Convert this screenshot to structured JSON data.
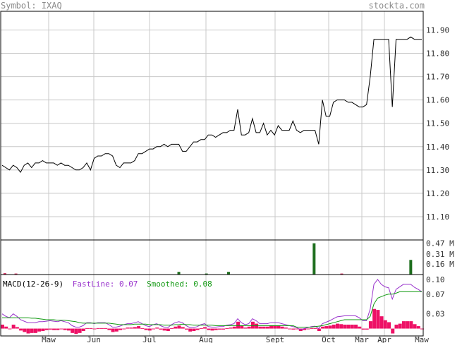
{
  "header": {
    "symbol_label": "Symbol: IXAQ",
    "site": "stockta.com"
  },
  "colors": {
    "price": "#000000",
    "grid": "#c8c8c8",
    "vol_green": "#1e6e1e",
    "vol_red": "#cc2255",
    "fast": "#9933cc",
    "smoothed": "#119911",
    "hist": "#ee1166",
    "axis_text": "#333333"
  },
  "chart_data": [
    {
      "type": "line",
      "panel": "price",
      "ylim": [
        11.0,
        11.98
      ],
      "y_ticks": [
        "11.90",
        "11.80",
        "11.70",
        "11.60",
        "11.50",
        "11.40",
        "11.30",
        "11.20",
        "11.10"
      ],
      "x_ticks": [
        "Maw",
        "Jun",
        "Jul",
        "Aug",
        "Sept",
        "Oct",
        "Mar",
        "Apr",
        "Maw"
      ],
      "grid": true,
      "series": [
        {
          "values": [
            11.32,
            11.31,
            11.3,
            11.32,
            11.31,
            11.29,
            11.32,
            11.33,
            11.31,
            11.33,
            11.33,
            11.34,
            11.33,
            11.33,
            11.33,
            11.32,
            11.33,
            11.32,
            11.32,
            11.31,
            11.3,
            11.3,
            11.31,
            11.33,
            11.3,
            11.35,
            11.36,
            11.36,
            11.37,
            11.37,
            11.36,
            11.32,
            11.31,
            11.33,
            11.33,
            11.33,
            11.34,
            11.37,
            11.37,
            11.38,
            11.39,
            11.39,
            11.4,
            11.4,
            11.41,
            11.4,
            11.41,
            11.41,
            11.41,
            11.38,
            11.38,
            11.4,
            11.42,
            11.42,
            11.43,
            11.43,
            11.45,
            11.45,
            11.44,
            11.45,
            11.46,
            11.46,
            11.47,
            11.47,
            11.56,
            11.45,
            11.45,
            11.46,
            11.52,
            11.46,
            11.46,
            11.5,
            11.45,
            11.47,
            11.45,
            11.49,
            11.47,
            11.47,
            11.47,
            11.51,
            11.47,
            11.46,
            11.47,
            11.47,
            11.47,
            11.47,
            11.41,
            11.6,
            11.53,
            11.53,
            11.59,
            11.6,
            11.6,
            11.6,
            11.59,
            11.59,
            11.58,
            11.57,
            11.57,
            11.58,
            11.7,
            11.86,
            11.86,
            11.86,
            11.86,
            11.86,
            11.57,
            11.86,
            11.86,
            11.86,
            11.86,
            11.87,
            11.86,
            11.86,
            11.86
          ]
        }
      ]
    },
    {
      "type": "bar",
      "panel": "volume",
      "y_ticks": [
        "0.47 M",
        "0.31 M",
        "0.16 M"
      ],
      "ylim": [
        0,
        0.52
      ],
      "bars": [
        {
          "i": 1,
          "v": 0.02,
          "c": "red"
        },
        {
          "i": 5,
          "v": 0.015,
          "c": "red"
        },
        {
          "i": 64,
          "v": 0.04,
          "c": "green"
        },
        {
          "i": 74,
          "v": 0.015,
          "c": "green"
        },
        {
          "i": 82,
          "v": 0.04,
          "c": "green"
        },
        {
          "i": 113,
          "v": 0.47,
          "c": "green"
        },
        {
          "i": 123,
          "v": 0.015,
          "c": "red"
        },
        {
          "i": 148,
          "v": 0.22,
          "c": "green"
        }
      ]
    },
    {
      "type": "line",
      "panel": "macd",
      "legend": {
        "title": "MACD(12-26-9)",
        "fast_label": "FastLine: 0.07",
        "smoothed_label": "Smoothed: 0.08"
      },
      "y_ticks": [
        "0.10",
        "0.07",
        "0.03"
      ],
      "ylim": [
        -0.015,
        0.11
      ],
      "series": [
        {
          "name": "FastLine",
          "values": [
            0.03,
            0.025,
            0.022,
            0.03,
            0.025,
            0.018,
            0.015,
            0.012,
            0.012,
            0.012,
            0.014,
            0.014,
            0.015,
            0.016,
            0.015,
            0.014,
            0.016,
            0.014,
            0.012,
            0.006,
            0.003,
            0.003,
            0.006,
            0.012,
            0.012,
            0.01,
            0.012,
            0.012,
            0.012,
            0.008,
            0.003,
            0.003,
            0.005,
            0.008,
            0.01,
            0.01,
            0.012,
            0.014,
            0.01,
            0.006,
            0.004,
            0.008,
            0.01,
            0.006,
            0.003,
            0.002,
            0.008,
            0.012,
            0.014,
            0.012,
            0.006,
            0.002,
            0.002,
            0.004,
            0.008,
            0.01,
            0.004,
            0.003,
            0.003,
            0.004,
            0.004,
            0.007,
            0.008,
            0.01,
            0.02,
            0.012,
            0.008,
            0.01,
            0.02,
            0.016,
            0.01,
            0.01,
            0.01,
            0.012,
            0.012,
            0.012,
            0.01,
            0.008,
            0.006,
            0.004,
            0.002,
            -0.002,
            0.0,
            0.002,
            0.004,
            0.005,
            0.0,
            0.01,
            0.013,
            0.016,
            0.02,
            0.024,
            0.025,
            0.026,
            0.026,
            0.026,
            0.026,
            0.022,
            0.016,
            0.016,
            0.04,
            0.09,
            0.1,
            0.09,
            0.085,
            0.083,
            0.06,
            0.08,
            0.085,
            0.09,
            0.09,
            0.09,
            0.084,
            0.08,
            0.075
          ]
        },
        {
          "name": "Smoothed",
          "values": [
            0.022,
            0.022,
            0.022,
            0.022,
            0.022,
            0.022,
            0.022,
            0.022,
            0.021,
            0.021,
            0.02,
            0.019,
            0.018,
            0.018,
            0.018,
            0.017,
            0.017,
            0.017,
            0.016,
            0.015,
            0.014,
            0.012,
            0.011,
            0.011,
            0.011,
            0.011,
            0.011,
            0.011,
            0.011,
            0.011,
            0.01,
            0.009,
            0.008,
            0.008,
            0.008,
            0.008,
            0.009,
            0.009,
            0.009,
            0.009,
            0.008,
            0.008,
            0.008,
            0.008,
            0.007,
            0.007,
            0.007,
            0.008,
            0.008,
            0.009,
            0.008,
            0.008,
            0.007,
            0.007,
            0.007,
            0.007,
            0.007,
            0.007,
            0.006,
            0.006,
            0.006,
            0.006,
            0.006,
            0.006,
            0.006,
            0.006,
            0.006,
            0.006,
            0.006,
            0.006,
            0.006,
            0.006,
            0.006,
            0.006,
            0.006,
            0.006,
            0.006,
            0.006,
            0.006,
            0.006,
            0.003,
            0.003,
            0.003,
            0.003,
            0.003,
            0.004,
            0.005,
            0.006,
            0.008,
            0.01,
            0.012,
            0.014,
            0.016,
            0.018,
            0.018,
            0.018,
            0.018,
            0.018,
            0.018,
            0.018,
            0.025,
            0.05,
            0.062,
            0.065,
            0.068,
            0.07,
            0.07,
            0.072,
            0.075,
            0.075,
            0.075,
            0.075,
            0.075,
            0.075,
            0.075
          ]
        }
      ],
      "histogram": [
        0.008,
        0.004,
        0.0,
        0.008,
        0.003,
        -0.004,
        -0.007,
        -0.01,
        -0.009,
        -0.009,
        -0.006,
        -0.005,
        -0.003,
        -0.002,
        -0.003,
        -0.003,
        -0.001,
        -0.003,
        -0.004,
        -0.009,
        -0.011,
        -0.009,
        -0.005,
        0.001,
        0.001,
        -0.001,
        0.001,
        0.001,
        0.001,
        -0.003,
        -0.007,
        -0.006,
        -0.003,
        0.0,
        0.002,
        0.002,
        0.003,
        0.005,
        0.001,
        -0.003,
        -0.004,
        0.0,
        0.002,
        -0.002,
        -0.004,
        -0.005,
        0.001,
        0.004,
        0.006,
        0.003,
        -0.002,
        -0.006,
        -0.005,
        -0.003,
        0.001,
        0.003,
        -0.003,
        -0.004,
        -0.003,
        -0.002,
        -0.002,
        0.001,
        0.002,
        0.004,
        0.014,
        0.006,
        0.002,
        0.004,
        0.014,
        0.01,
        0.004,
        0.004,
        0.004,
        0.006,
        0.006,
        0.006,
        0.004,
        0.002,
        0.0,
        -0.002,
        -0.001,
        -0.005,
        -0.003,
        -0.001,
        0.001,
        0.001,
        -0.005,
        0.004,
        0.005,
        0.006,
        0.008,
        0.01,
        0.009,
        0.008,
        0.008,
        0.008,
        0.008,
        0.004,
        -0.002,
        -0.002,
        0.015,
        0.04,
        0.038,
        0.025,
        0.017,
        0.013,
        -0.01,
        0.008,
        0.01,
        0.015,
        0.015,
        0.015,
        0.009,
        0.005,
        0.0
      ]
    }
  ]
}
